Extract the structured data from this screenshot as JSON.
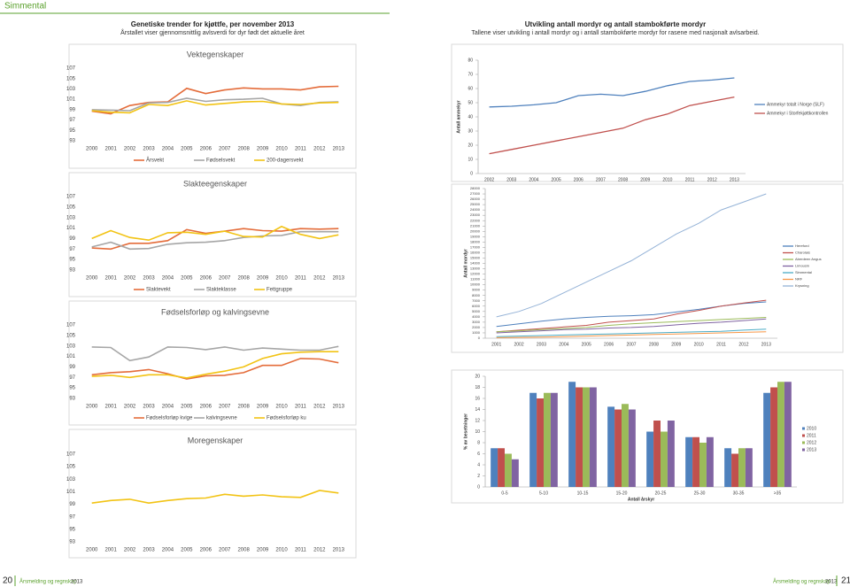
{
  "section": "Simmental",
  "left_header": {
    "title": "Genetiske trender for kjøttfe, per november 2013",
    "subtitle": "Årstallet viser gjennomsnittlig avlsverdi for dyr født det aktuelle året"
  },
  "right_header": {
    "title": "Utvikling antall mordyr og antall stambokførte mordyr",
    "subtitle": "Tallene viser utvikling i antall mordyr og i antall stambokførte mordyr for rasene med nasjonalt avlsarbeid."
  },
  "footer": {
    "left_page": "20",
    "left_text": "Årsmelding og regnskap",
    "left_year": "2013",
    "right_text": "Årsmelding og regnskap",
    "right_year": "2013",
    "right_page": "21"
  },
  "chart_data": [
    {
      "type": "line",
      "title": "Vektegenskaper",
      "categories": [
        "2000",
        "2001",
        "2002",
        "2003",
        "2004",
        "2005",
        "2006",
        "2007",
        "2008",
        "2009",
        "2010",
        "2011",
        "2012",
        "2013"
      ],
      "series": [
        {
          "name": "Årsvekt",
          "color": "#e46c3a",
          "values": [
            98.7,
            98.2,
            99.8,
            100.4,
            100.5,
            103.1,
            102.1,
            102.8,
            103.2,
            103.0,
            103.0,
            102.8,
            103.4,
            103.5
          ]
        },
        {
          "name": "Fødselsvekt",
          "color": "#a6a6a6",
          "values": [
            99.0,
            98.9,
            98.8,
            100.3,
            100.4,
            101.2,
            100.6,
            100.9,
            101.0,
            101.2,
            100.1,
            99.8,
            100.4,
            100.5
          ]
        },
        {
          "name": "200-dagersvekt",
          "color": "#f2c314",
          "values": [
            98.8,
            98.5,
            98.4,
            100.0,
            99.8,
            100.7,
            99.9,
            100.2,
            100.5,
            100.6,
            100.1,
            100.0,
            100.3,
            100.4
          ]
        }
      ],
      "ylim": [
        93,
        107
      ],
      "yticks": [
        93,
        95,
        97,
        99,
        101,
        103,
        105,
        107
      ],
      "legend": "bottom"
    },
    {
      "type": "line",
      "title": "Slakteegenskaper",
      "categories": [
        "2000",
        "2001",
        "2002",
        "2003",
        "2004",
        "2005",
        "2006",
        "2007",
        "2008",
        "2009",
        "2010",
        "2011",
        "2012",
        "2013"
      ],
      "series": [
        {
          "name": "Slaktevekt",
          "color": "#e46c3a",
          "values": [
            97.2,
            97.0,
            98.1,
            98.1,
            98.6,
            100.7,
            100.0,
            100.4,
            100.9,
            100.5,
            100.4,
            100.9,
            100.8,
            100.9
          ]
        },
        {
          "name": "Slakteklasse",
          "color": "#a6a6a6",
          "values": [
            97.4,
            98.3,
            97.0,
            97.1,
            97.9,
            98.2,
            98.3,
            98.6,
            99.2,
            99.5,
            99.6,
            100.3,
            100.3,
            100.3
          ]
        },
        {
          "name": "Fettgruppe",
          "color": "#f2c314",
          "values": [
            99.0,
            100.5,
            99.2,
            98.7,
            100.1,
            100.2,
            99.8,
            100.4,
            99.4,
            99.3,
            101.3,
            99.8,
            99.0,
            99.7
          ]
        }
      ],
      "ylim": [
        93,
        107
      ],
      "yticks": [
        93,
        95,
        97,
        99,
        101,
        103,
        105,
        107
      ],
      "legend": "bottom"
    },
    {
      "type": "line",
      "title": "Fødselsforløp og kalvingsevne",
      "categories": [
        "2000",
        "2001",
        "2002",
        "2003",
        "2004",
        "2005",
        "2006",
        "2007",
        "2008",
        "2009",
        "2010",
        "2011",
        "2012",
        "2013"
      ],
      "series": [
        {
          "name": "Fødselsforløp kvige",
          "color": "#e46c3a",
          "values": [
            97.5,
            97.9,
            98.1,
            98.5,
            97.7,
            96.7,
            97.3,
            97.4,
            97.9,
            99.3,
            99.3,
            100.6,
            100.5,
            99.8
          ]
        },
        {
          "name": "kalvingsevne",
          "color": "#a6a6a6",
          "values": [
            102.8,
            102.7,
            100.2,
            100.9,
            102.8,
            102.7,
            102.3,
            102.8,
            102.2,
            102.6,
            102.4,
            102.2,
            102.2,
            102.9
          ]
        },
        {
          "name": "Fødselsforløp ku",
          "color": "#f2c314",
          "values": [
            97.2,
            97.4,
            97.0,
            97.5,
            97.5,
            96.9,
            97.6,
            98.2,
            99.0,
            100.6,
            101.5,
            101.8,
            101.9,
            101.9
          ]
        }
      ],
      "ylim": [
        93,
        107
      ],
      "yticks": [
        93,
        95,
        97,
        99,
        101,
        103,
        105,
        107
      ],
      "legend": "bottom"
    },
    {
      "type": "line",
      "title": "Moregenskaper",
      "categories": [
        "2000",
        "2001",
        "2002",
        "2003",
        "2004",
        "2005",
        "2006",
        "2007",
        "2008",
        "2009",
        "2010",
        "2011",
        "2012",
        "2013"
      ],
      "series": [
        {
          "color": "#f2c314",
          "values": [
            99.2,
            99.6,
            99.8,
            99.2,
            99.6,
            99.9,
            100.0,
            100.6,
            100.3,
            100.5,
            100.2,
            100.1,
            101.2,
            100.8
          ]
        }
      ],
      "ylim": [
        93,
        107
      ],
      "yticks": [
        93,
        95,
        97,
        99,
        101,
        103,
        105,
        107
      ]
    },
    {
      "type": "line",
      "ylabel": "Antall ammekyr",
      "categories": [
        "2002",
        "2003",
        "2004",
        "2005",
        "2006",
        "2007",
        "2008",
        "2009",
        "2010",
        "2011",
        "2012",
        "2013"
      ],
      "series": [
        {
          "name": "Ammekyr totalt i Norge (SLF)",
          "color": "#4f81bd",
          "values": [
            47,
            47.5,
            48.5,
            50,
            55,
            56,
            55,
            58,
            62,
            65,
            66,
            67.5
          ]
        },
        {
          "name": "Ammekyr i Storfekjøttkontrollen",
          "color": "#c0504d",
          "values": [
            14,
            17,
            20,
            23,
            26,
            29,
            32,
            38,
            42,
            48,
            51,
            54
          ]
        }
      ],
      "ylim": [
        0,
        80
      ],
      "yticks": [
        0,
        10,
        20,
        30,
        40,
        50,
        60,
        70,
        80
      ],
      "legend": "right"
    },
    {
      "type": "line",
      "ylabel": "Antall mordyr",
      "categories": [
        "2001",
        "2002",
        "2003",
        "2004",
        "2005",
        "2006",
        "2007",
        "2008",
        "2009",
        "2010",
        "2011",
        "2012",
        "2013"
      ],
      "series": [
        {
          "name": "Hereford",
          "color": "#4f81bd",
          "values": [
            2200,
            2700,
            3200,
            3600,
            3900,
            4100,
            4200,
            4400,
            4900,
            5400,
            6000,
            6500,
            6800
          ]
        },
        {
          "name": "Charolais",
          "color": "#c0504d",
          "values": [
            1200,
            1500,
            1800,
            2100,
            2400,
            3000,
            3300,
            3600,
            4500,
            5200,
            6000,
            6600,
            7100
          ]
        },
        {
          "name": "Aberdeen Angus",
          "color": "#9bbb59",
          "values": [
            1200,
            1400,
            1600,
            1800,
            2000,
            2400,
            2700,
            2900,
            3100,
            3300,
            3500,
            3700,
            3900
          ]
        },
        {
          "name": "Limousin",
          "color": "#8064a2",
          "values": [
            1000,
            1200,
            1400,
            1600,
            1700,
            1900,
            2000,
            2200,
            2500,
            2800,
            3000,
            3300,
            3600
          ]
        },
        {
          "name": "Simmental",
          "color": "#4bacc6",
          "values": [
            300,
            400,
            500,
            600,
            700,
            800,
            900,
            1000,
            1100,
            1200,
            1300,
            1500,
            1700
          ]
        },
        {
          "name": "NRF",
          "color": "#f79646",
          "values": [
            100,
            150,
            200,
            300,
            400,
            500,
            600,
            700,
            800,
            900,
            1000,
            1100,
            1200
          ]
        },
        {
          "name": "Krysning",
          "color": "#95b3d7",
          "values": [
            4000,
            5000,
            6500,
            8500,
            10500,
            12500,
            14500,
            17000,
            19500,
            21500,
            24000,
            25500,
            27000
          ]
        }
      ],
      "ylim": [
        0,
        28000
      ],
      "yticks": [
        0,
        1000,
        2000,
        3000,
        4000,
        5000,
        6000,
        7000,
        8000,
        9000,
        10000,
        11000,
        12000,
        13000,
        14000,
        15000,
        16000,
        17000,
        18000,
        19000,
        20000,
        21000,
        22000,
        23000,
        24000,
        25000,
        26000,
        27000,
        28000
      ],
      "legend": "right"
    },
    {
      "type": "bar",
      "xlabel": "Antall årskyr",
      "ylabel": "% av besetninger",
      "categories": [
        "0-5",
        "5-10",
        "10-15",
        "15-20",
        "20-25",
        "25-30",
        "30-35",
        ">35"
      ],
      "series": [
        {
          "name": "2010",
          "color": "#4f81bd",
          "values": [
            7,
            17,
            19,
            14.5,
            10,
            9,
            7,
            17
          ]
        },
        {
          "name": "2011",
          "color": "#c0504d",
          "values": [
            7,
            16,
            18,
            14,
            12,
            9,
            6,
            18
          ]
        },
        {
          "name": "2012",
          "color": "#9bbb59",
          "values": [
            6,
            17,
            18,
            15,
            10,
            8,
            7,
            19
          ]
        },
        {
          "name": "2013",
          "color": "#8064a2",
          "values": [
            5,
            17,
            18,
            14,
            12,
            9,
            7,
            19
          ]
        }
      ],
      "ylim": [
        0,
        20
      ],
      "yticks": [
        0,
        2,
        4,
        6,
        8,
        10,
        12,
        14,
        16,
        18,
        20
      ],
      "legend": "right"
    }
  ]
}
